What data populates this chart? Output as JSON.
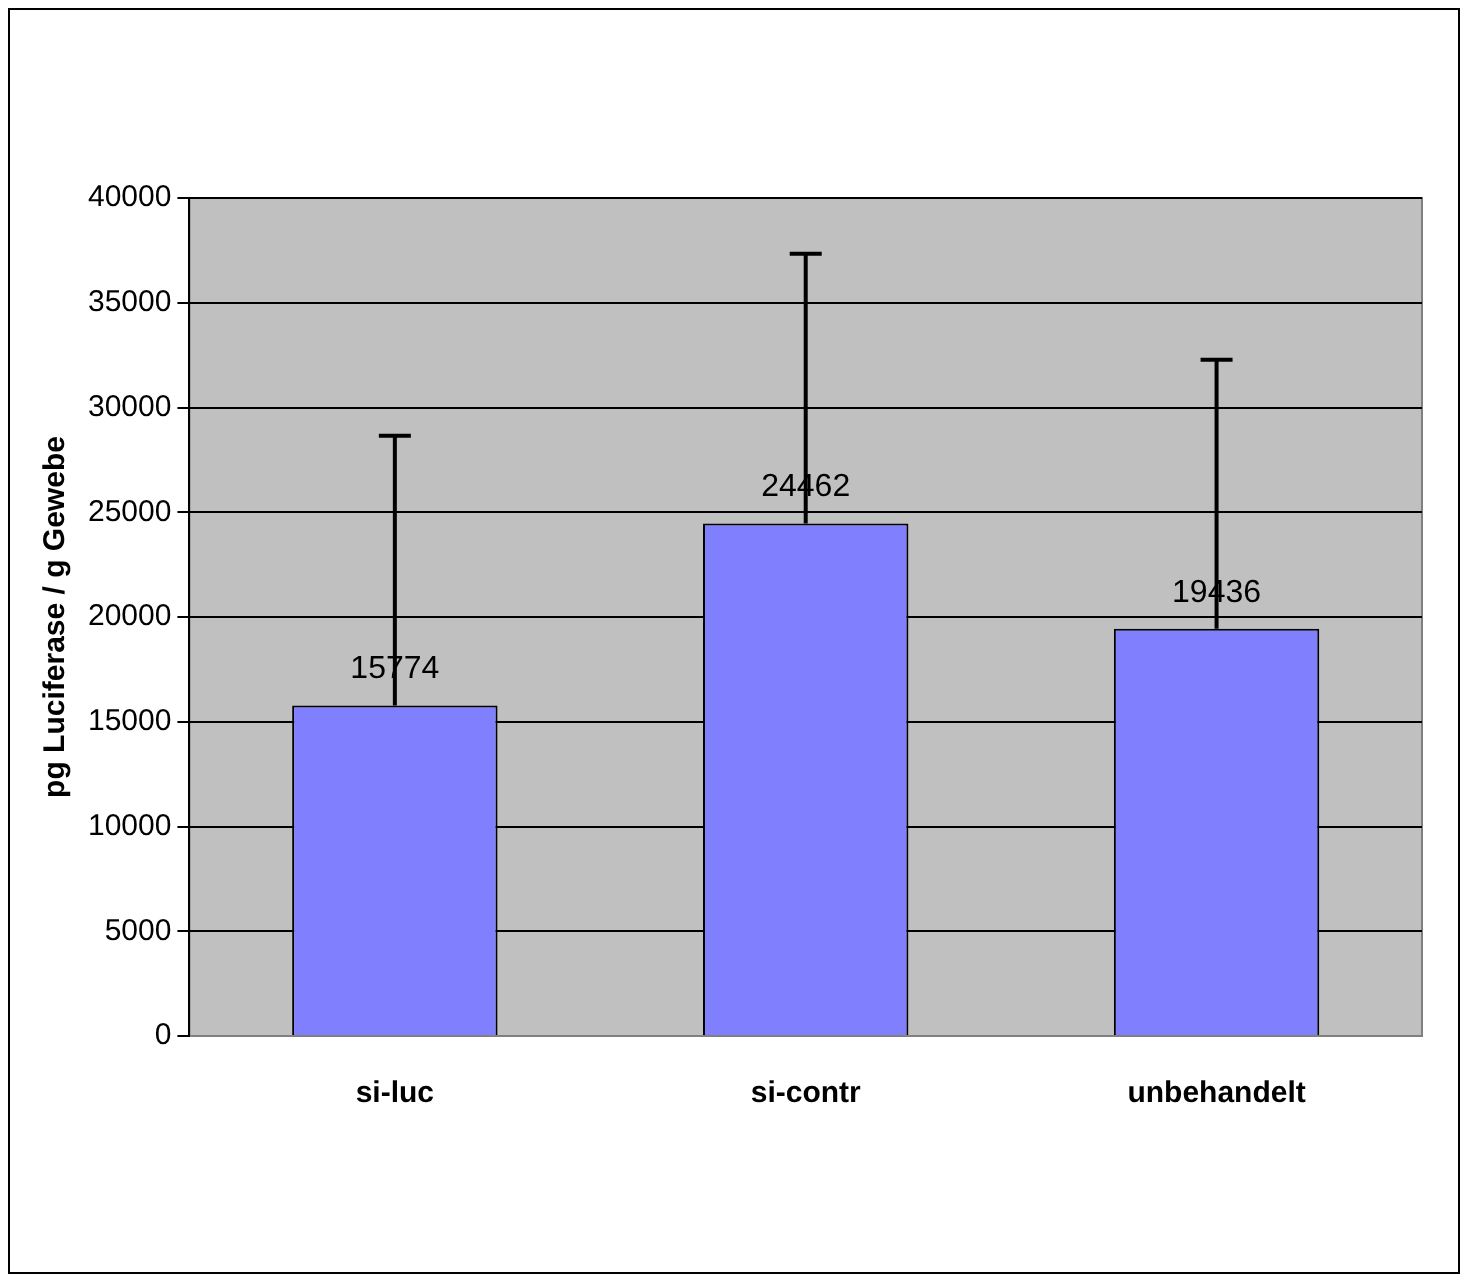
{
  "chart_data": {
    "type": "bar",
    "ylabel": "pg Luciferase / g Gewebe",
    "categories": [
      "si-luc",
      "si-contr",
      "unbehandelt"
    ],
    "values": [
      15774,
      24462,
      19436
    ],
    "color": "#8080ff",
    "errors": [
      [
        15774,
        28650
      ],
      [
        24462,
        37340
      ],
      [
        19436,
        32280
      ]
    ],
    "ylim": [
      0,
      40000
    ],
    "yticks": [
      0,
      5000,
      10000,
      15000,
      20000,
      25000,
      30000,
      35000,
      40000
    ],
    "grid": "y",
    "legend": false,
    "data_labels": true
  }
}
